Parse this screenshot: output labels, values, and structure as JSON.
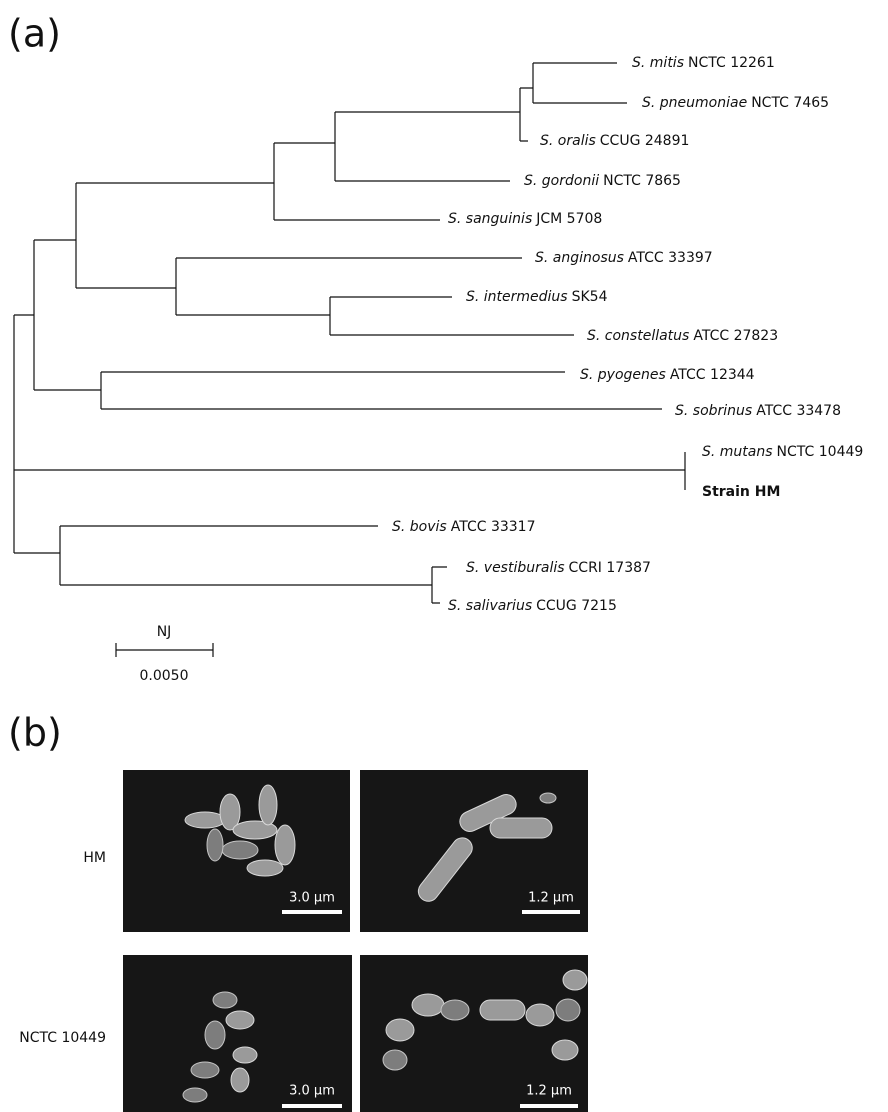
{
  "panel_a": {
    "label": "(a)",
    "leaves": [
      {
        "species": "S. mitis",
        "strain": "NCTC 12261"
      },
      {
        "species": "S. pneumoniae",
        "strain": "NCTC 7465"
      },
      {
        "species": "S. oralis",
        "strain": "CCUG 24891"
      },
      {
        "species": "S. gordonii",
        "strain": "NCTC 7865"
      },
      {
        "species": "S. sanguinis",
        "strain": "JCM 5708"
      },
      {
        "species": "S. anginosus",
        "strain": "ATCC 33397"
      },
      {
        "species": "S. intermedius",
        "strain": "SK54"
      },
      {
        "species": "S. constellatus",
        "strain": "ATCC 27823"
      },
      {
        "species": "S. pyogenes",
        "strain": "ATCC 12344"
      },
      {
        "species": "S. sobrinus",
        "strain": "ATCC 33478"
      },
      {
        "species": "S. mutans",
        "strain": "NCTC 10449"
      },
      {
        "strain": "Strain HM"
      },
      {
        "species": "S. bovis",
        "strain": "ATCC 33317"
      },
      {
        "species": "S. vestiburalis",
        "strain": "CCRI 17387"
      },
      {
        "species": "S. salivarius",
        "strain": "CCUG 7215"
      }
    ],
    "scale": {
      "method": "NJ",
      "value": "0.0050"
    }
  },
  "panel_b": {
    "label": "(b)",
    "rows": [
      {
        "label": "HM",
        "images": [
          {
            "scale_bar": "3.0 µm"
          },
          {
            "scale_bar": "1.2 µm"
          }
        ]
      },
      {
        "label": "NCTC 10449",
        "images": [
          {
            "scale_bar": "3.0 µm"
          },
          {
            "scale_bar": "1.2 µm"
          }
        ]
      }
    ]
  }
}
